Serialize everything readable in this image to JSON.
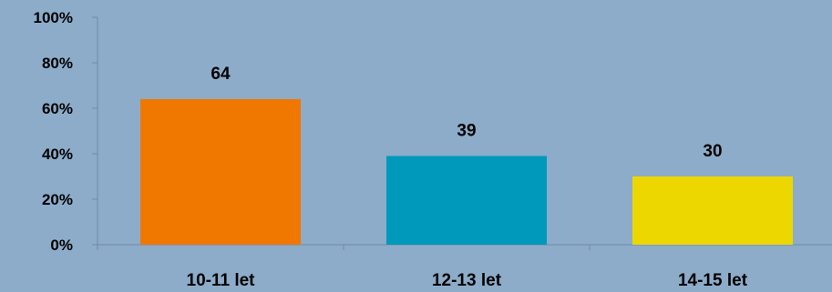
{
  "chart_data": {
    "type": "bar",
    "categories": [
      "10-11 let",
      "12-13 let",
      "14-15 let"
    ],
    "values": [
      64,
      39,
      30
    ],
    "data_labels": [
      "64",
      "39",
      "30"
    ],
    "colors": [
      "#f07800",
      "#0098bb",
      "#ecd800"
    ],
    "title": "",
    "xlabel": "",
    "ylabel": "",
    "ylim": [
      0,
      100
    ],
    "y_ticks": [
      0,
      20,
      40,
      60,
      80,
      100
    ],
    "y_tick_labels": [
      "0%",
      "20%",
      "40%",
      "60%",
      "80%",
      "100%"
    ],
    "grid": false,
    "legend": "none",
    "background": "#8cacc9",
    "axis_color": "#6f8aa6"
  }
}
